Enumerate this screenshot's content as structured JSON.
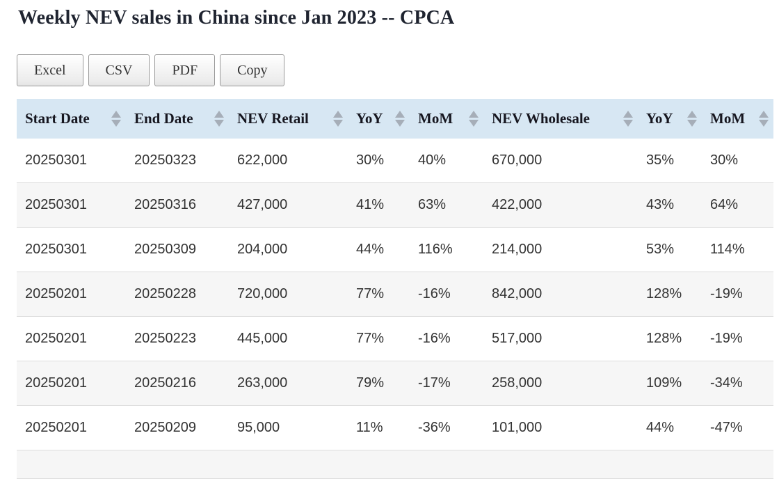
{
  "page": {
    "title": "Weekly NEV sales in China since Jan 2023 -- CPCA"
  },
  "toolbar": {
    "buttons": [
      "Excel",
      "CSV",
      "PDF",
      "Copy"
    ]
  },
  "table": {
    "columns": [
      "Start Date",
      "End Date",
      "NEV Retail",
      "YoY",
      "MoM",
      "NEV Wholesale",
      "YoY",
      "MoM"
    ],
    "rows": [
      [
        "20250301",
        "20250323",
        "622,000",
        "30%",
        "40%",
        "670,000",
        "35%",
        "30%"
      ],
      [
        "20250301",
        "20250316",
        "427,000",
        "41%",
        "63%",
        "422,000",
        "43%",
        "64%"
      ],
      [
        "20250301",
        "20250309",
        "204,000",
        "44%",
        "116%",
        "214,000",
        "53%",
        "114%"
      ],
      [
        "20250201",
        "20250228",
        "720,000",
        "77%",
        "-16%",
        "842,000",
        "128%",
        "-19%"
      ],
      [
        "20250201",
        "20250223",
        "445,000",
        "77%",
        "-16%",
        "517,000",
        "128%",
        "-19%"
      ],
      [
        "20250201",
        "20250216",
        "263,000",
        "79%",
        "-17%",
        "258,000",
        "109%",
        "-34%"
      ],
      [
        "20250201",
        "20250209",
        "95,000",
        "11%",
        "-36%",
        "101,000",
        "44%",
        "-47%"
      ]
    ]
  },
  "colors": {
    "header_bg": "#d7e7f3",
    "row_stripe": "#f6f6f6",
    "row_border": "#dddddd",
    "sort_arrow": "#a6aeb8",
    "title_text": "#1f2430",
    "cell_text": "#333333"
  }
}
